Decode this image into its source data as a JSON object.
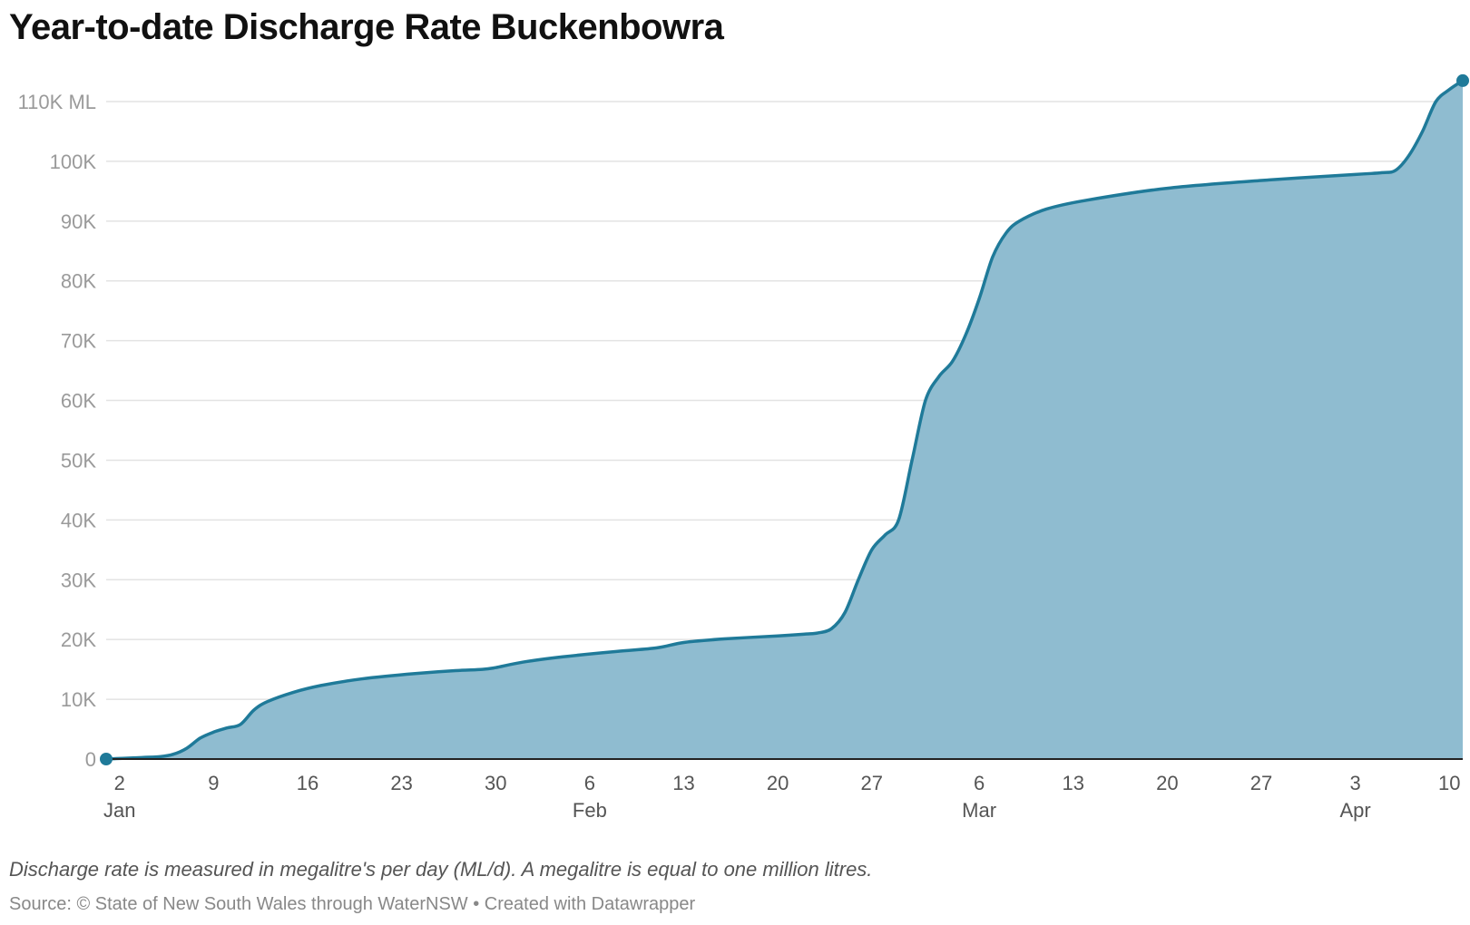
{
  "chart_data": {
    "type": "area",
    "title": "Year-to-date Discharge Rate Buckenbowra",
    "xlabel": "",
    "ylabel": "",
    "y_unit": "ML",
    "ylim": [
      0,
      110000
    ],
    "y_ticks": [
      {
        "value": 0,
        "label": "0"
      },
      {
        "value": 10000,
        "label": "10K"
      },
      {
        "value": 20000,
        "label": "20K"
      },
      {
        "value": 30000,
        "label": "30K"
      },
      {
        "value": 40000,
        "label": "40K"
      },
      {
        "value": 50000,
        "label": "50K"
      },
      {
        "value": 60000,
        "label": "60K"
      },
      {
        "value": 70000,
        "label": "70K"
      },
      {
        "value": 80000,
        "label": "80K"
      },
      {
        "value": 90000,
        "label": "90K"
      },
      {
        "value": 100000,
        "label": "100K"
      },
      {
        "value": 110000,
        "label": "110K ML"
      }
    ],
    "x_ticks": [
      {
        "date": "2024-01-02",
        "label": "2",
        "month": "Jan"
      },
      {
        "date": "2024-01-09",
        "label": "9",
        "month": ""
      },
      {
        "date": "2024-01-16",
        "label": "16",
        "month": ""
      },
      {
        "date": "2024-01-23",
        "label": "23",
        "month": ""
      },
      {
        "date": "2024-01-30",
        "label": "30",
        "month": ""
      },
      {
        "date": "2024-02-06",
        "label": "6",
        "month": "Feb"
      },
      {
        "date": "2024-02-13",
        "label": "13",
        "month": ""
      },
      {
        "date": "2024-02-20",
        "label": "20",
        "month": ""
      },
      {
        "date": "2024-02-27",
        "label": "27",
        "month": ""
      },
      {
        "date": "2024-03-06",
        "label": "6",
        "month": "Mar"
      },
      {
        "date": "2024-03-13",
        "label": "13",
        "month": ""
      },
      {
        "date": "2024-03-20",
        "label": "20",
        "month": ""
      },
      {
        "date": "2024-03-27",
        "label": "27",
        "month": ""
      },
      {
        "date": "2024-04-03",
        "label": "3",
        "month": "Apr"
      },
      {
        "date": "2024-04-10",
        "label": "10",
        "month": ""
      }
    ],
    "xlim": [
      "2024-01-01",
      "2024-04-11"
    ],
    "grid": true,
    "series": [
      {
        "x": [
          "2024-01-01",
          "2024-01-03",
          "2024-01-05",
          "2024-01-06",
          "2024-01-07",
          "2024-01-08",
          "2024-01-09",
          "2024-01-10",
          "2024-01-11",
          "2024-01-12",
          "2024-01-13",
          "2024-01-15",
          "2024-01-17",
          "2024-01-20",
          "2024-01-24",
          "2024-01-27",
          "2024-01-29",
          "2024-01-30",
          "2024-02-01",
          "2024-02-04",
          "2024-02-08",
          "2024-02-11",
          "2024-02-13",
          "2024-02-16",
          "2024-02-20",
          "2024-02-22",
          "2024-02-23",
          "2024-02-24",
          "2024-02-25",
          "2024-02-26",
          "2024-02-27",
          "2024-02-28",
          "2024-02-29",
          "2024-03-01",
          "2024-03-02",
          "2024-03-03",
          "2024-03-04",
          "2024-03-05",
          "2024-03-06",
          "2024-03-07",
          "2024-03-08",
          "2024-03-09",
          "2024-03-11",
          "2024-03-14",
          "2024-03-20",
          "2024-03-27",
          "2024-04-03",
          "2024-04-05",
          "2024-04-06",
          "2024-04-07",
          "2024-04-08",
          "2024-04-09",
          "2024-04-10",
          "2024-04-11"
        ],
        "values": [
          0,
          200,
          400,
          800,
          1800,
          3500,
          4500,
          5200,
          5800,
          8200,
          9600,
          11200,
          12300,
          13400,
          14300,
          14800,
          15000,
          15300,
          16200,
          17100,
          18000,
          18600,
          19500,
          20100,
          20600,
          20900,
          21100,
          21800,
          24500,
          30000,
          35000,
          37500,
          40000,
          50000,
          60000,
          64000,
          66500,
          71000,
          77000,
          84000,
          88000,
          90000,
          92000,
          93500,
          95500,
          96800,
          97800,
          98100,
          98500,
          101000,
          105000,
          110000,
          112000,
          113500
        ]
      }
    ],
    "line_color": "#1f7a99",
    "fill_color": "#8fbcd0"
  },
  "footer": {
    "note": "Discharge rate is measured in megalitre's per day (ML/d). A megalitre is equal to one million litres.",
    "source": "Source: © State of New South Wales through WaterNSW • Created with Datawrapper"
  }
}
